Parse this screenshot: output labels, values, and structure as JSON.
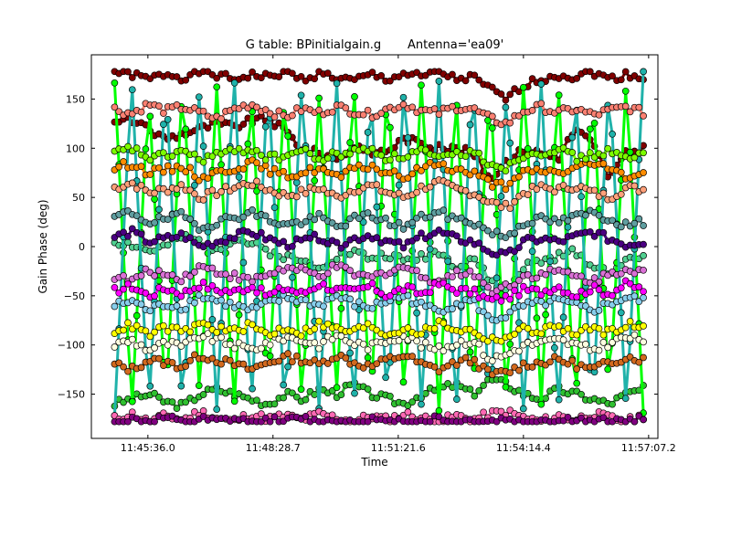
{
  "chart_data": {
    "type": "scatter",
    "title": "G table: BPinitialgain.g       Antenna='ea09'",
    "xlabel": "Time",
    "ylabel": "Gain Phase (deg)",
    "xlim": [
      "11:44:18",
      "11:57:20"
    ],
    "ylim": [
      -195,
      195
    ],
    "x_ticks": [
      {
        "value": "11:45:36.0",
        "label": "11:45:36.0"
      },
      {
        "value": "11:48:28.7",
        "label": "11:48:28.7"
      },
      {
        "value": "11:51:21.6",
        "label": "11:51:21.6"
      },
      {
        "value": "11:54:14.4",
        "label": "11:54:14.4"
      },
      {
        "value": "11:57:07.2",
        "label": "11:57:07.2"
      }
    ],
    "y_ticks": [
      150,
      100,
      50,
      0,
      -50,
      -100,
      -150
    ],
    "y_tick_labels": [
      "150",
      "100",
      "50",
      "0",
      "−50",
      "−100",
      "−150"
    ],
    "x_range": [
      "11:44:50",
      "11:57:00"
    ],
    "grid": false,
    "legend": "none",
    "marker": "circle",
    "connected": true,
    "series": [
      {
        "color": "#800000",
        "values": [
          125,
          130,
          118,
          110,
          115,
          120,
          125,
          122,
          128,
          130,
          118,
          100,
          95,
          90,
          100,
          95,
          98,
          110,
          105,
          100,
          100,
          95,
          70,
          85,
          100,
          95,
          90,
          120,
          105,
          70,
          95,
          100
        ]
      },
      {
        "color": "#800000",
        "values": [
          178,
          175,
          170,
          176,
          172,
          178,
          174,
          170,
          175,
          172,
          178,
          170,
          176,
          172,
          168,
          175,
          170,
          176,
          172,
          178,
          170,
          172,
          160,
          150,
          165,
          170,
          175,
          172,
          178,
          170,
          175,
          172
        ]
      },
      {
        "color": "#50d090",
        "values": [
          5,
          2,
          -5,
          0,
          10,
          5,
          -2,
          8,
          3,
          -5,
          -10,
          -15,
          -20,
          -10,
          -5,
          -12,
          -8,
          -15,
          -10,
          -5,
          -20,
          -10,
          -35,
          -45,
          -20,
          -15,
          -10,
          -5,
          -20,
          -25,
          -15,
          -10
        ]
      },
      {
        "color": "#30c030",
        "values": [
          -160,
          -155,
          -150,
          -158,
          -162,
          -150,
          -145,
          -150,
          -155,
          -160,
          -150,
          -155,
          -145,
          -150,
          -140,
          -150,
          -155,
          -160,
          -150,
          -145,
          -140,
          -150,
          -135,
          -140,
          -150,
          -155,
          -145,
          -150,
          -155,
          -160,
          -150,
          -145
        ]
      },
      {
        "color": "#00ff00",
        "values": [
          170,
          -170,
          160,
          -165,
          175,
          -160,
          168,
          -172,
          165,
          -150,
          170,
          -168,
          160,
          -155,
          172,
          -165,
          168,
          -160,
          175,
          -170,
          162,
          -158,
          170,
          -165,
          175,
          -160,
          168,
          -172,
          165,
          -155,
          170,
          -168
        ]
      },
      {
        "color": "#20b2aa",
        "values": [
          -175,
          175,
          -170,
          170,
          -176,
          172,
          -168,
          176,
          -172,
          168,
          -175,
          174,
          -170,
          172,
          -176,
          170,
          -172,
          175,
          -168,
          172,
          -174,
          176,
          -170,
          168,
          -175,
          172,
          -176,
          170,
          -172,
          174,
          -170,
          176
        ]
      },
      {
        "color": "#fa8072",
        "values": [
          140,
          135,
          145,
          138,
          142,
          136,
          130,
          140,
          145,
          138,
          132,
          140,
          136,
          142,
          138,
          134,
          140,
          145,
          138,
          136,
          142,
          140,
          130,
          125,
          138,
          142,
          136,
          140,
          134,
          138,
          142,
          136
        ]
      },
      {
        "color": "#ffa07a",
        "values": [
          60,
          65,
          55,
          58,
          62,
          50,
          55,
          60,
          65,
          58,
          52,
          55,
          60,
          50,
          58,
          62,
          55,
          50,
          60,
          65,
          58,
          55,
          45,
          40,
          55,
          60,
          58,
          62,
          55,
          50,
          60,
          58
        ]
      },
      {
        "color": "#87ceeb",
        "values": [
          -60,
          -55,
          -65,
          -58,
          -62,
          -50,
          -55,
          -60,
          -65,
          -58,
          -52,
          -55,
          -60,
          -50,
          -58,
          -62,
          -55,
          -50,
          -60,
          -65,
          -58,
          -55,
          -75,
          -70,
          -60,
          -58,
          -55,
          -60,
          -65,
          -58,
          -52,
          -55
        ]
      },
      {
        "color": "#ffffe0",
        "values": [
          -100,
          -95,
          -105,
          -98,
          -102,
          -90,
          -95,
          -100,
          -105,
          -98,
          -92,
          -95,
          -100,
          -90,
          -98,
          -102,
          -95,
          -90,
          -100,
          -105,
          -98,
          -95,
          -115,
          -110,
          -100,
          -98,
          -95,
          -100,
          -105,
          -98,
          -92,
          -95
        ]
      },
      {
        "color": "#da70d6",
        "values": [
          -30,
          -35,
          -25,
          -28,
          -32,
          -20,
          -25,
          -30,
          -35,
          -28,
          -22,
          -25,
          -30,
          -20,
          -28,
          -32,
          -25,
          -20,
          -30,
          -35,
          -28,
          -25,
          -45,
          -40,
          -30,
          -28,
          -25,
          -30,
          -35,
          -28,
          -22,
          -25
        ]
      },
      {
        "color": "#ff69b4",
        "values": [
          -175,
          -170,
          -178,
          -172,
          -176,
          -168,
          -174,
          -178,
          -170,
          -175,
          -172,
          -176,
          -170,
          -174,
          -178,
          -172,
          -176,
          -170,
          -174,
          -178,
          -172,
          -176,
          -170,
          -168,
          -174,
          -178,
          -172,
          -176,
          -170,
          -174,
          -178,
          -172
        ]
      },
      {
        "color": "#800080",
        "values": [
          -180,
          -176,
          -178,
          -174,
          -180,
          -176,
          -178,
          -175,
          -180,
          -176,
          -178,
          -174,
          -180,
          -176,
          -178,
          -175,
          -180,
          -176,
          -178,
          -174,
          -180,
          -176,
          -178,
          -175,
          -180,
          -176,
          -178,
          -174,
          -180,
          -176,
          -178,
          -175
        ]
      },
      {
        "color": "#d2691e",
        "values": [
          -120,
          -125,
          -115,
          -118,
          -122,
          -110,
          -115,
          -120,
          -125,
          -118,
          -112,
          -115,
          -120,
          -110,
          -118,
          -122,
          -115,
          -110,
          -120,
          -125,
          -118,
          -115,
          -130,
          -128,
          -120,
          -118,
          -115,
          -120,
          -125,
          -118,
          -112,
          -115
        ]
      },
      {
        "color": "#4b0082",
        "values": [
          10,
          15,
          5,
          8,
          12,
          0,
          5,
          10,
          15,
          8,
          2,
          5,
          10,
          0,
          8,
          12,
          5,
          0,
          10,
          15,
          8,
          5,
          -5,
          -10,
          5,
          8,
          5,
          10,
          15,
          8,
          2,
          5
        ]
      },
      {
        "color": "#ff8c00",
        "values": [
          80,
          85,
          75,
          78,
          82,
          70,
          75,
          80,
          85,
          78,
          72,
          75,
          80,
          70,
          78,
          82,
          75,
          70,
          80,
          85,
          78,
          75,
          65,
          60,
          75,
          78,
          75,
          80,
          85,
          78,
          72,
          75
        ]
      },
      {
        "color": "#ffff00",
        "values": [
          -85,
          -80,
          -90,
          -82,
          -88,
          -78,
          -84,
          -86,
          -80,
          -90,
          -82,
          -88,
          -78,
          -84,
          -86,
          -80,
          -90,
          -82,
          -88,
          -78,
          -84,
          -86,
          -95,
          -92,
          -84,
          -86,
          -80,
          -90,
          -82,
          -88,
          -78,
          -84
        ]
      },
      {
        "color": "#ff00ff",
        "values": [
          -45,
          -40,
          -50,
          -42,
          -48,
          -38,
          -44,
          -46,
          -40,
          -50,
          -42,
          -48,
          -38,
          -44,
          -46,
          -40,
          -50,
          -42,
          -48,
          -38,
          -44,
          -46,
          -55,
          -52,
          -44,
          -46,
          -40,
          -50,
          -42,
          -48,
          -38,
          -44
        ]
      },
      {
        "color": "#7cfc00",
        "values": [
          95,
          100,
          90,
          92,
          98,
          88,
          94,
          96,
          100,
          90,
          92,
          98,
          88,
          94,
          96,
          100,
          90,
          92,
          98,
          88,
          94,
          96,
          85,
          80,
          94,
          96,
          100,
          90,
          92,
          98,
          88,
          94
        ]
      },
      {
        "color": "#5f9ea0",
        "values": [
          30,
          35,
          25,
          28,
          32,
          20,
          25,
          30,
          35,
          28,
          22,
          25,
          30,
          20,
          28,
          32,
          25,
          20,
          30,
          35,
          28,
          25,
          15,
          10,
          25,
          28,
          25,
          30,
          35,
          28,
          22,
          25
        ]
      }
    ]
  }
}
